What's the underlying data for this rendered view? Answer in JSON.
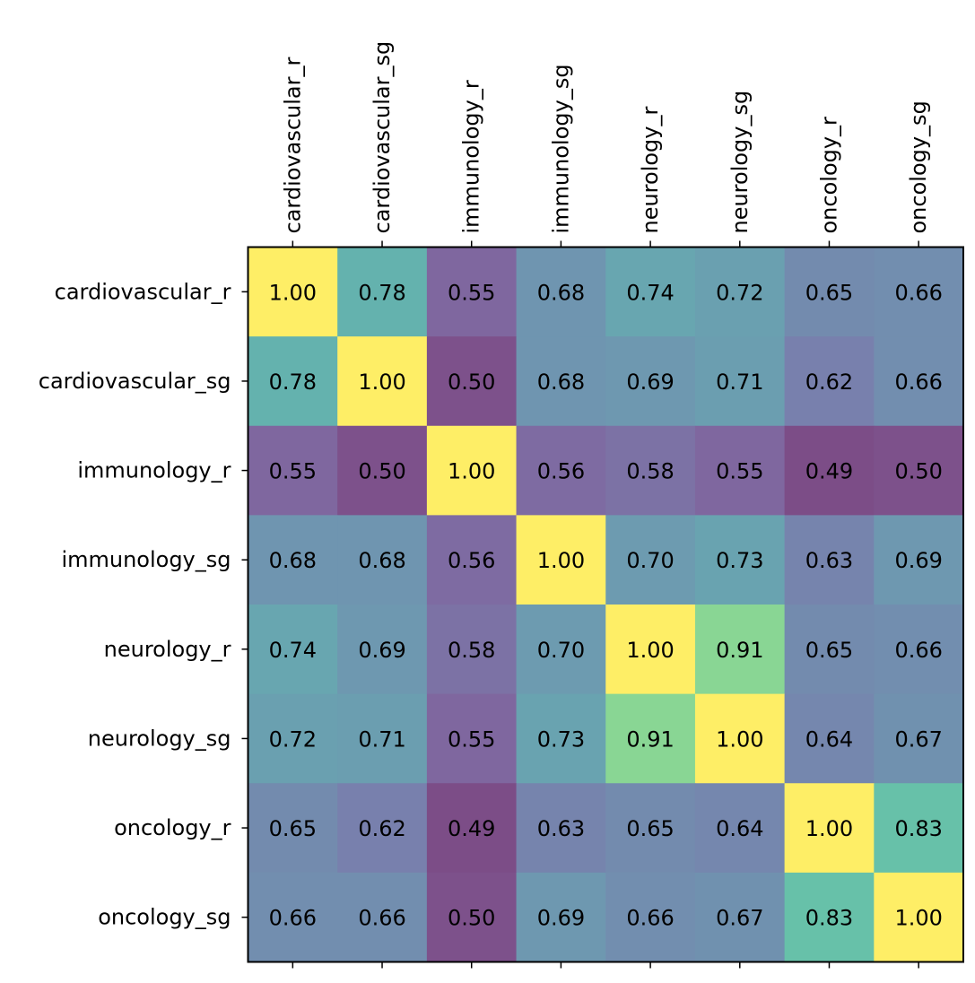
{
  "chart_data": {
    "type": "heatmap",
    "title": "",
    "colormap": "viridis",
    "alpha": 0.7,
    "color_range": [
      0.49,
      1.0
    ],
    "x_labels": [
      "cardiovascular_r",
      "cardiovascular_sg",
      "immunology_r",
      "immunology_sg",
      "neurology_r",
      "neurology_sg",
      "oncology_r",
      "oncology_sg"
    ],
    "y_labels": [
      "cardiovascular_r",
      "cardiovascular_sg",
      "immunology_r",
      "immunology_sg",
      "neurology_r",
      "neurology_sg",
      "oncology_r",
      "oncology_sg"
    ],
    "x_tick_position": "top",
    "values": [
      [
        1.0,
        0.78,
        0.55,
        0.68,
        0.74,
        0.72,
        0.65,
        0.66
      ],
      [
        0.78,
        1.0,
        0.5,
        0.68,
        0.69,
        0.71,
        0.62,
        0.66
      ],
      [
        0.55,
        0.5,
        1.0,
        0.56,
        0.58,
        0.55,
        0.49,
        0.5
      ],
      [
        0.68,
        0.68,
        0.56,
        1.0,
        0.7,
        0.73,
        0.63,
        0.69
      ],
      [
        0.74,
        0.69,
        0.58,
        0.7,
        1.0,
        0.91,
        0.65,
        0.66
      ],
      [
        0.72,
        0.71,
        0.55,
        0.73,
        0.91,
        1.0,
        0.64,
        0.67
      ],
      [
        0.65,
        0.62,
        0.49,
        0.63,
        0.65,
        0.64,
        1.0,
        0.83
      ],
      [
        0.66,
        0.66,
        0.5,
        0.69,
        0.66,
        0.67,
        0.83,
        1.0
      ]
    ]
  }
}
